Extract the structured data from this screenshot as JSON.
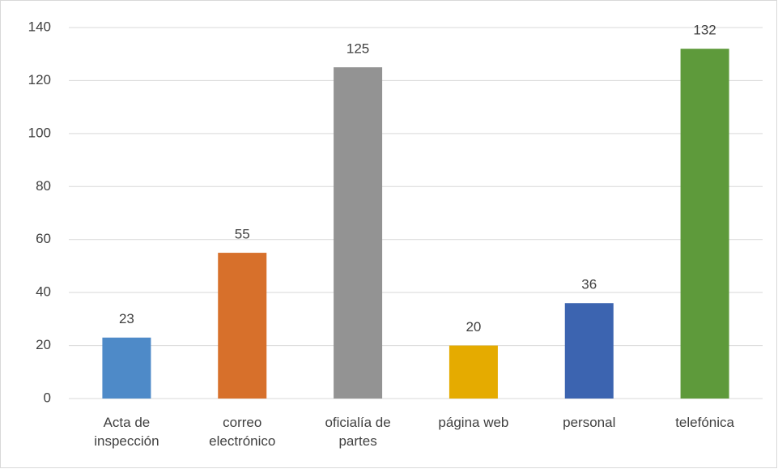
{
  "chart_data": {
    "type": "bar",
    "categories": [
      "Acta de inspección",
      "correo electrónico",
      "oficialía de partes",
      "página web",
      "personal",
      "telefónica"
    ],
    "values": [
      23,
      55,
      125,
      20,
      36,
      132
    ],
    "colors": [
      "#4e8ac8",
      "#d7702b",
      "#939393",
      "#e5ab00",
      "#3c64b0",
      "#5e9a3b"
    ],
    "ylim": [
      0,
      140
    ],
    "yticks": [
      0,
      20,
      40,
      60,
      80,
      100,
      120,
      140
    ],
    "grid": true
  }
}
